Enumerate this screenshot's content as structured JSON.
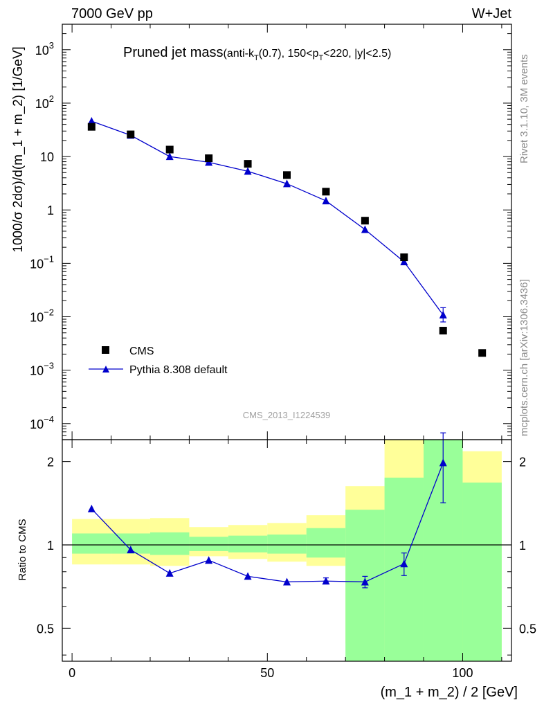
{
  "header": {
    "left": "7000 GeV pp",
    "right": "W+Jet"
  },
  "title": {
    "main": "Pruned jet mass",
    "sub_a": "(anti-k",
    "sub_a_sub": "T",
    "sub_b": "(0.7), 150<p",
    "sub_b_sub": "T",
    "sub_c": "<220, |y|<2.5)"
  },
  "side_text": {
    "rivet": "Rivet 3.1.10,  3M events",
    "mcplots": "mcplots.cern.ch [arXiv:1306.3436]"
  },
  "watermark": "CMS_2013_I1224539",
  "chart_data": [
    {
      "type": "scatter",
      "panel": "main",
      "ylabel": "1000/σ 2dσ)/d(m_1 + m_2) [1/GeV]",
      "yscale": "log",
      "ylim": [
        5e-05,
        3000
      ],
      "xlim": [
        -2.5,
        112.5
      ],
      "ytick_labels": [
        {
          "base": "10",
          "exp": "3"
        },
        {
          "base": "10",
          "exp": "2"
        },
        {
          "base": "10",
          "exp": ""
        },
        {
          "base": "1",
          "exp": ""
        },
        {
          "base": "10",
          "exp": "−1"
        },
        {
          "base": "10",
          "exp": "−2"
        },
        {
          "base": "10",
          "exp": "−3"
        },
        {
          "base": "10",
          "exp": "−4"
        }
      ],
      "legend_position": "bottom-left",
      "series": [
        {
          "name": "CMS",
          "color": "#000000",
          "marker": "square",
          "x": [
            5,
            15,
            25,
            35,
            45,
            55,
            65,
            75,
            85,
            95,
            105
          ],
          "y": [
            36,
            26,
            13.5,
            9.3,
            7.3,
            4.5,
            2.2,
            0.63,
            0.13,
            0.0055,
            0.0021
          ]
        },
        {
          "name": "Pythia 8.308 default",
          "color": "#0000cc",
          "marker": "triangle",
          "x": [
            5,
            15,
            25,
            35,
            45,
            55,
            65,
            75,
            85,
            95
          ],
          "y": [
            46,
            25,
            10.0,
            7.8,
            5.3,
            3.1,
            1.48,
            0.43,
            0.107,
            0.0108
          ],
          "err_low": [
            0,
            0,
            0,
            0,
            0,
            0,
            0,
            0,
            0,
            0.0028
          ],
          "err_high": [
            0,
            0,
            0,
            0,
            0,
            0,
            0,
            0,
            0,
            0.004
          ]
        }
      ]
    },
    {
      "type": "line",
      "panel": "ratio",
      "ylabel": "Ratio to CMS",
      "xlabel": "(m_1 + m_2) / 2 [GeV]",
      "yscale": "log",
      "ylim": [
        0.38,
        2.4
      ],
      "xlim": [
        -2.5,
        112.5
      ],
      "xticks": [
        0,
        50,
        100
      ],
      "yticks": [
        0.5,
        1,
        2
      ],
      "bands": {
        "x_edges": [
          0,
          10,
          20,
          30,
          40,
          50,
          60,
          70,
          80,
          90,
          100,
          110
        ],
        "yellow_low": [
          0.85,
          0.85,
          0.84,
          0.91,
          0.89,
          0.87,
          0.84,
          0.44,
          0.38,
          0.38,
          0.38
        ],
        "yellow_high": [
          1.24,
          1.24,
          1.25,
          1.16,
          1.18,
          1.2,
          1.28,
          1.63,
          2.4,
          2.4,
          2.18
        ],
        "green_low": [
          0.93,
          0.93,
          0.92,
          0.95,
          0.94,
          0.93,
          0.9,
          0.38,
          0.38,
          0.38,
          0.38
        ],
        "green_high": [
          1.1,
          1.1,
          1.11,
          1.07,
          1.08,
          1.09,
          1.15,
          1.34,
          1.75,
          2.4,
          1.68
        ],
        "yellow_color": "#ffff99",
        "green_color": "#99ff99"
      },
      "series": [
        {
          "name": "Pythia 8.308 default",
          "color": "#0000cc",
          "x": [
            5,
            15,
            25,
            35,
            45,
            55,
            65,
            75,
            85,
            95
          ],
          "y": [
            1.35,
            0.96,
            0.79,
            0.88,
            0.77,
            0.735,
            0.74,
            0.735,
            0.855,
            1.98
          ],
          "err_low": [
            0,
            0,
            0,
            0,
            0,
            0,
            0,
            0.035,
            0.08,
            0.56
          ],
          "err_high": [
            0,
            0,
            0,
            0,
            0,
            0,
            0.02,
            0.035,
            0.08,
            0.56
          ]
        }
      ]
    }
  ]
}
